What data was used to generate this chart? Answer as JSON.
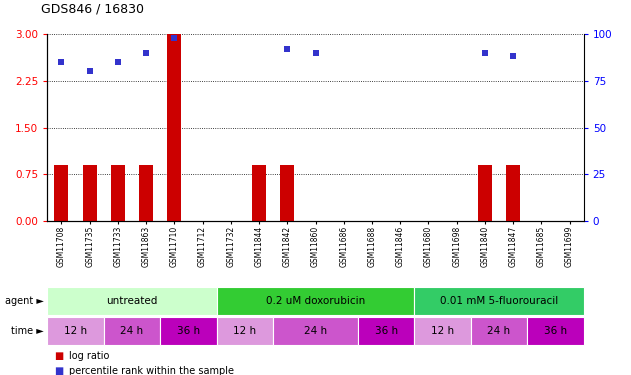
{
  "title": "GDS846 / 16830",
  "samples": [
    "GSM11708",
    "GSM11735",
    "GSM11733",
    "GSM11863",
    "GSM11710",
    "GSM11712",
    "GSM11732",
    "GSM11844",
    "GSM11842",
    "GSM11860",
    "GSM11686",
    "GSM11688",
    "GSM11846",
    "GSM11680",
    "GSM11698",
    "GSM11840",
    "GSM11847",
    "GSM11685",
    "GSM11699"
  ],
  "log_ratio": [
    0.9,
    0.9,
    0.9,
    0.9,
    3.0,
    0.0,
    0.0,
    0.9,
    0.9,
    0.0,
    0.0,
    0.0,
    0.0,
    0.0,
    0.0,
    0.9,
    0.9,
    0.0,
    0.0
  ],
  "percentile_rank": [
    85,
    80,
    85,
    90,
    98,
    null,
    null,
    null,
    92,
    90,
    null,
    null,
    null,
    null,
    null,
    90,
    88,
    null,
    null
  ],
  "ylim_left": [
    0,
    3
  ],
  "ylim_right": [
    0,
    100
  ],
  "yticks_left": [
    0,
    0.75,
    1.5,
    2.25,
    3
  ],
  "yticks_right": [
    0,
    25,
    50,
    75,
    100
  ],
  "bar_color": "#cc0000",
  "dot_color": "#3333cc",
  "agent_groups": [
    {
      "label": "untreated",
      "start": 0,
      "end": 6,
      "color": "#ccffcc"
    },
    {
      "label": "0.2 uM doxorubicin",
      "start": 6,
      "end": 13,
      "color": "#33cc33"
    },
    {
      "label": "0.01 mM 5-fluorouracil",
      "start": 13,
      "end": 19,
      "color": "#33cc66"
    }
  ],
  "time_groups": [
    {
      "label": "12 h",
      "start": 0,
      "end": 2,
      "color": "#dd99dd"
    },
    {
      "label": "24 h",
      "start": 2,
      "end": 4,
      "color": "#cc55cc"
    },
    {
      "label": "36 h",
      "start": 4,
      "end": 6,
      "color": "#bb00bb"
    },
    {
      "label": "12 h",
      "start": 6,
      "end": 8,
      "color": "#dd99dd"
    },
    {
      "label": "24 h",
      "start": 8,
      "end": 11,
      "color": "#cc55cc"
    },
    {
      "label": "36 h",
      "start": 11,
      "end": 13,
      "color": "#bb00bb"
    },
    {
      "label": "12 h",
      "start": 13,
      "end": 15,
      "color": "#dd99dd"
    },
    {
      "label": "24 h",
      "start": 15,
      "end": 17,
      "color": "#cc55cc"
    },
    {
      "label": "36 h",
      "start": 17,
      "end": 19,
      "color": "#bb00bb"
    }
  ],
  "legend_bar_label": "log ratio",
  "legend_dot_label": "percentile rank within the sample"
}
